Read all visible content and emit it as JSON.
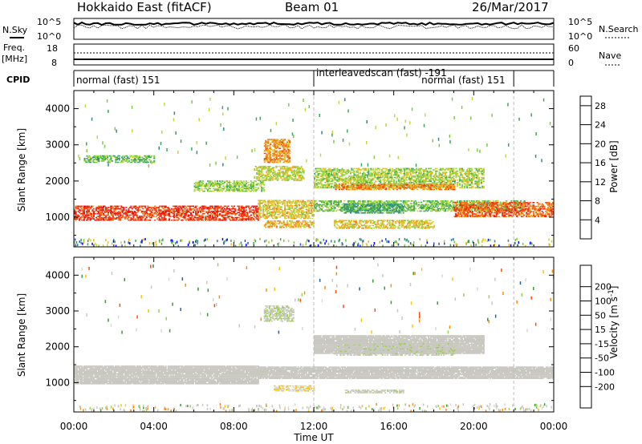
{
  "header": {
    "title": "Hokkaido East (fitACF)",
    "beam": "Beam 01",
    "date": "26/Mar/2017"
  },
  "noise_panel": {
    "left_label": "N.Sky",
    "left_ticks": [
      "10^5",
      "10^0"
    ],
    "right_label": "N.Search",
    "right_ticks": [
      "10^5",
      "10^0"
    ]
  },
  "freq_panel": {
    "left_label_top": "Freq.",
    "left_label_unit": "[MHz]",
    "left_ticks": [
      "18",
      "8"
    ],
    "right_label": "Nave",
    "right_ticks": [
      "60",
      "0"
    ]
  },
  "cpid_panel": {
    "label": "CPID",
    "segments": [
      {
        "name": "normal (fast) 151",
        "start_hour": 0,
        "end_hour": 12
      },
      {
        "name": "interleavedscan (fast) -191",
        "start_hour": 12,
        "end_hour": 22
      },
      {
        "name": "normal (fast) 151",
        "start_hour": 22,
        "end_hour": 24
      }
    ]
  },
  "x_axis": {
    "label": "Time UT",
    "ticks": [
      "00:00",
      "04:00",
      "08:00",
      "12:00",
      "16:00",
      "20:00",
      "00:00"
    ]
  },
  "colors": {
    "power_scale": [
      "#0000ff",
      "#1f55c8",
      "#2f8a8a",
      "#3aa55a",
      "#7ccd3c",
      "#c8d43a",
      "#f0b020",
      "#f07818",
      "#f04010",
      "#e81010"
    ],
    "velocity_scale": [
      "#ff0000",
      "#ff4d00",
      "#ff8c00",
      "#ffc000",
      "#d9d9d0",
      "#c8c8c0",
      "#9ad04a",
      "#33a02c",
      "#2060b0",
      "#0030c8"
    ],
    "ground_scatter": "#c8c8c0"
  },
  "chart_data": [
    {
      "type": "heatmap",
      "title": "Power",
      "xlabel": "Time UT",
      "ylabel": "Slant Range [km]",
      "x_range_hours": [
        0,
        24
      ],
      "ylim": [
        180,
        4500
      ],
      "y_ticks": [
        1000,
        2000,
        3000,
        4000
      ],
      "colorbar": {
        "label": "Power [dB]",
        "ticks": [
          4,
          8,
          12,
          16,
          20,
          24,
          28
        ],
        "range": [
          0,
          30
        ]
      },
      "regions": [
        {
          "t0": 0,
          "t1": 9.2,
          "r0": 900,
          "r1": 1300,
          "value": 26
        },
        {
          "t0": 9.2,
          "t1": 12,
          "r0": 950,
          "r1": 1450,
          "value": 18
        },
        {
          "t0": 12,
          "t1": 22.5,
          "r0": 1150,
          "r1": 1450,
          "value": 13
        },
        {
          "t0": 19,
          "t1": 24,
          "r0": 1000,
          "r1": 1400,
          "value": 24
        },
        {
          "t0": 6,
          "t1": 9.5,
          "r0": 1700,
          "r1": 2000,
          "value": 14
        },
        {
          "t0": 9,
          "t1": 11.5,
          "r0": 2000,
          "r1": 2400,
          "value": 16
        },
        {
          "t0": 9.5,
          "t1": 10.8,
          "r0": 2500,
          "r1": 3150,
          "value": 21
        },
        {
          "t0": 12,
          "t1": 20.5,
          "r0": 1800,
          "r1": 2350,
          "value": 15
        },
        {
          "t0": 13,
          "t1": 19,
          "r0": 1750,
          "r1": 1900,
          "value": 22
        },
        {
          "t0": 13,
          "t1": 18,
          "r0": 680,
          "r1": 900,
          "value": 18
        },
        {
          "t0": 13.5,
          "t1": 16.5,
          "r0": 1100,
          "r1": 1350,
          "value": 10
        },
        {
          "t0": 9.5,
          "t1": 12,
          "r0": 700,
          "r1": 900,
          "value": 20
        },
        {
          "t0": 0.5,
          "t1": 4,
          "r0": 2500,
          "r1": 2700,
          "value": 12
        }
      ]
    },
    {
      "type": "heatmap",
      "title": "Velocity",
      "xlabel": "Time UT",
      "ylabel": "Slant Range [km]",
      "x_range_hours": [
        0,
        24
      ],
      "ylim": [
        180,
        4500
      ],
      "y_ticks": [
        1000,
        2000,
        3000,
        4000
      ],
      "colorbar": {
        "label": "Velocity [m s^-1]",
        "ticks": [
          200,
          100,
          50,
          15,
          -15,
          -50,
          -100,
          -200
        ],
        "range": [
          -250,
          250
        ]
      },
      "regions": [
        {
          "t0": 0,
          "t1": 9.2,
          "r0": 950,
          "r1": 1450,
          "value": 0,
          "ground_scatter": true
        },
        {
          "t0": 9.2,
          "t1": 24,
          "r0": 1100,
          "r1": 1450,
          "value": 0,
          "ground_scatter": true
        },
        {
          "t0": 12,
          "t1": 20.5,
          "r0": 1800,
          "r1": 2300,
          "value": 0,
          "ground_scatter": true
        },
        {
          "t0": 9.5,
          "t1": 11,
          "r0": 2700,
          "r1": 3150,
          "value": 40
        },
        {
          "t0": 13.5,
          "t1": 16.5,
          "r0": 700,
          "r1": 800,
          "value": 30
        },
        {
          "t0": 13,
          "t1": 19,
          "r0": 1750,
          "r1": 2100,
          "value": 30
        },
        {
          "t0": 10,
          "t1": 12,
          "r0": 750,
          "r1": 900,
          "value": -40
        }
      ]
    }
  ]
}
